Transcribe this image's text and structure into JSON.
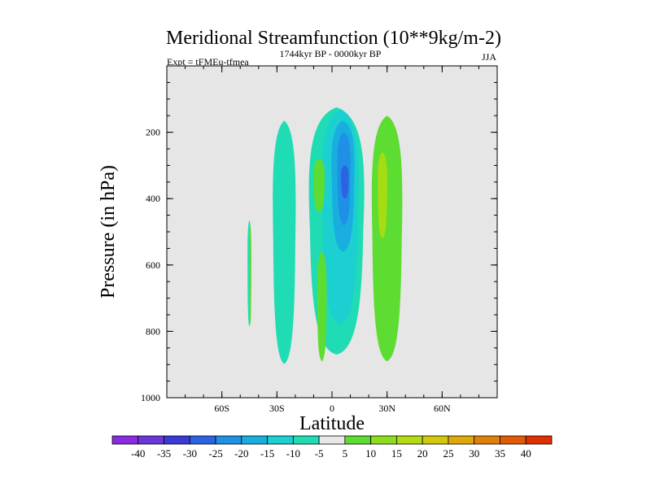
{
  "chart_data": {
    "type": "contour",
    "title": "Meridional Streamfunction (10**9kg/m-2)",
    "left_subtitle": "Expt = tFMEu-tfmea",
    "center_subtitle": "1744kyr BP - 0000kyr BP",
    "right_subtitle": "JJA",
    "xlabel": "Latitude",
    "ylabel": "Pressure (in hPa)",
    "xlim": [
      -90,
      90
    ],
    "ylim": [
      1000,
      0
    ],
    "x_ticks": [
      {
        "value": -60,
        "label": "60S"
      },
      {
        "value": -30,
        "label": "30S"
      },
      {
        "value": 0,
        "label": "0"
      },
      {
        "value": 30,
        "label": "30N"
      },
      {
        "value": 60,
        "label": "60N"
      }
    ],
    "y_ticks": [
      {
        "value": 200,
        "label": "200"
      },
      {
        "value": 400,
        "label": "400"
      },
      {
        "value": 600,
        "label": "600"
      },
      {
        "value": 800,
        "label": "800"
      },
      {
        "value": 1000,
        "label": "1000"
      }
    ],
    "colorbar": {
      "labels": [
        "-40",
        "-35",
        "-30",
        "-25",
        "-20",
        "-15",
        "-10",
        "-5",
        "5",
        "10",
        "15",
        "20",
        "25",
        "30",
        "35",
        "40"
      ],
      "colors": [
        "#8a2be2",
        "#6a36dc",
        "#3a3ad8",
        "#2b63e0",
        "#2090e6",
        "#18aee0",
        "#1ccfd0",
        "#20dcb4",
        "#e8e8e8",
        "#5ddc32",
        "#8edc1e",
        "#b4dc14",
        "#d2c80e",
        "#e0a80a",
        "#e08008",
        "#e05a08",
        "#e03000"
      ]
    },
    "field_units": "10**9 kg/m-2",
    "contour_regions": [
      {
        "name": "cyan-band-30S",
        "level": "-5",
        "lat_range": [
          -20,
          -32
        ],
        "pressure_range": [
          165,
          898
        ]
      },
      {
        "name": "cyan-band-equatorial",
        "level": "-5",
        "lat_range": [
          -12,
          17
        ],
        "pressure_range": [
          125,
          870
        ]
      },
      {
        "name": "teal-core-equatorial",
        "level": "-10",
        "lat_range": [
          -5,
          14
        ],
        "pressure_range": [
          130,
          780
        ]
      },
      {
        "name": "light-blue-core",
        "level": "-15",
        "lat_range": [
          0,
          12
        ],
        "pressure_range": [
          165,
          560
        ]
      },
      {
        "name": "blue-core",
        "level": "-20",
        "lat_range": [
          3,
          10
        ],
        "pressure_range": [
          200,
          480
        ]
      },
      {
        "name": "deep-blue-core",
        "level": "-25",
        "lat_range": [
          5,
          9
        ],
        "pressure_range": [
          300,
          400
        ]
      },
      {
        "name": "cyan-sliver-40S",
        "level": "-5",
        "lat_range": [
          -46,
          -44
        ],
        "pressure_range": [
          465,
          785
        ]
      },
      {
        "name": "green-sliver-40S",
        "level": "5",
        "lat_range": [
          -45,
          -44
        ],
        "pressure_range": [
          480,
          780
        ]
      },
      {
        "name": "green-upper-10S",
        "level": "5",
        "lat_range": [
          -10,
          -4
        ],
        "pressure_range": [
          280,
          440
        ]
      },
      {
        "name": "green-lower-5S",
        "level": "5",
        "lat_range": [
          -8,
          -3
        ],
        "pressure_range": [
          560,
          890
        ]
      },
      {
        "name": "green-band-25N",
        "level": "5",
        "lat_range": [
          22,
          38
        ],
        "pressure_range": [
          150,
          890
        ]
      },
      {
        "name": "yellow-green-core-25N",
        "level": "10",
        "lat_range": [
          25,
          30
        ],
        "pressure_range": [
          260,
          520
        ]
      }
    ]
  }
}
